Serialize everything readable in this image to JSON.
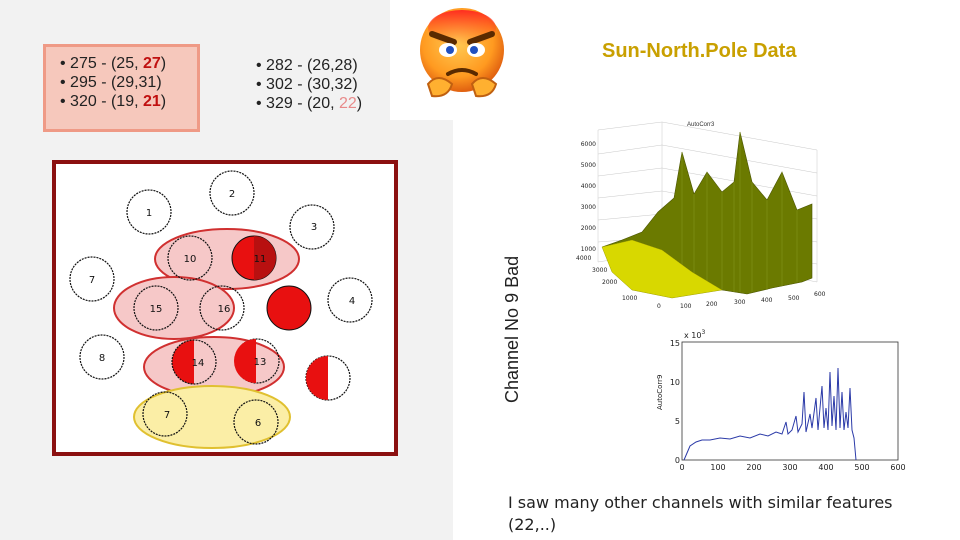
{
  "left_list": [
    {
      "prefix": "• 275 - (25, ",
      "hl": "27",
      "suffix": ")"
    },
    {
      "prefix": "• 295 - (29,31)",
      "hl": "",
      "suffix": ""
    },
    {
      "prefix": "• 320 - (19, ",
      "hl": "21",
      "suffix": ")"
    }
  ],
  "right_list": [
    {
      "prefix": "• 282 - (26,28)",
      "hl": "",
      "suffix": ""
    },
    {
      "prefix": "• 302 - (30,32)",
      "hl": "",
      "suffix": ""
    },
    {
      "prefix": "• 329 - (20, ",
      "hl": "22",
      "suffix": ")"
    }
  ],
  "title": "Sun-North.Pole Data",
  "vertical_label": "Channel No 9   Bad",
  "footnote": "I saw many other channels with similar features (22,..)",
  "colors": {
    "title": "#c9a000",
    "highlight": "#c01010",
    "sensor_red": "#e81010",
    "olive": "#6b7a00",
    "plot_blue": "#2b3aa8"
  },
  "diagram_labels": [
    "1",
    "2",
    "3",
    "10",
    "11",
    "7",
    "15",
    "16",
    "4",
    "8",
    "14",
    "13",
    "7",
    "6"
  ],
  "plot3d": {
    "title": "AutoCorr3",
    "z_ticks": [
      "6000",
      "5000",
      "4000",
      "3000",
      "2000",
      "1000",
      "0"
    ],
    "x_ticks": [
      "0",
      "100",
      "200",
      "300",
      "400",
      "500",
      "600"
    ],
    "y_ticks": [
      "0",
      "1000",
      "2000",
      "3000",
      "4000"
    ]
  },
  "plot2d": {
    "ylabel": "AutoCorr9",
    "exponent": "x 10",
    "exponent_sup": "3",
    "y_ticks": [
      "15",
      "10",
      "5",
      "0"
    ],
    "x_ticks": [
      "0",
      "100",
      "200",
      "300",
      "400",
      "500",
      "600"
    ]
  }
}
